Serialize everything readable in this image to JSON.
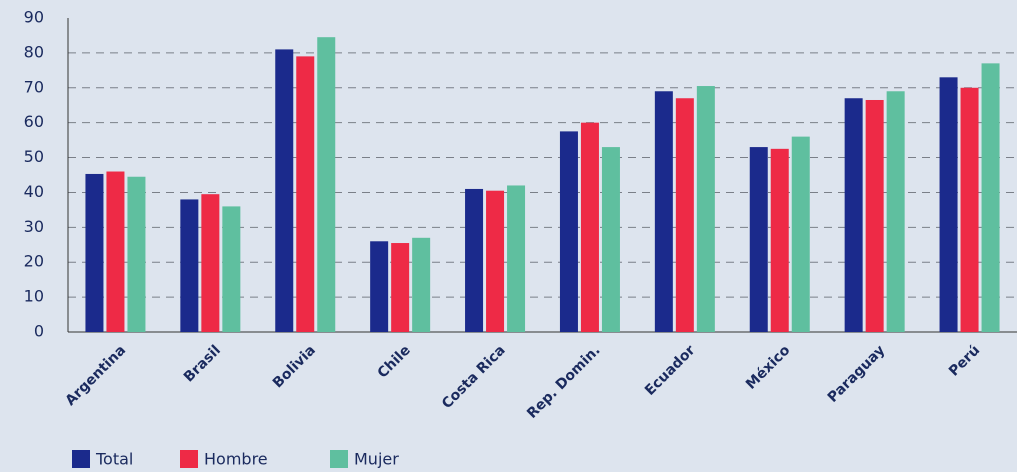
{
  "chart_data": {
    "type": "bar",
    "categories": [
      "Argentina",
      "Brasil",
      "Bolivia",
      "Chile",
      "Costa Rica",
      "Rep. Domin.",
      "Ecuador",
      "México",
      "Paraguay",
      "Perú"
    ],
    "series": [
      {
        "name": "Total",
        "color": "#1b2a8c",
        "values": [
          45.3,
          38,
          81,
          26,
          41,
          57.5,
          69,
          53,
          67,
          73
        ]
      },
      {
        "name": "Hombre",
        "color": "#ee2a46",
        "values": [
          46,
          39.5,
          79,
          25.5,
          40.5,
          60,
          67,
          52.5,
          66.5,
          70
        ]
      },
      {
        "name": "Mujer",
        "color": "#5fbf9f",
        "values": [
          44.5,
          36,
          84.5,
          27,
          42,
          53,
          70.5,
          56,
          69,
          77
        ]
      }
    ],
    "ylim": [
      0,
      90
    ],
    "yticks": [
      0,
      10,
      20,
      30,
      40,
      50,
      60,
      70,
      80,
      90
    ],
    "grid": true
  }
}
